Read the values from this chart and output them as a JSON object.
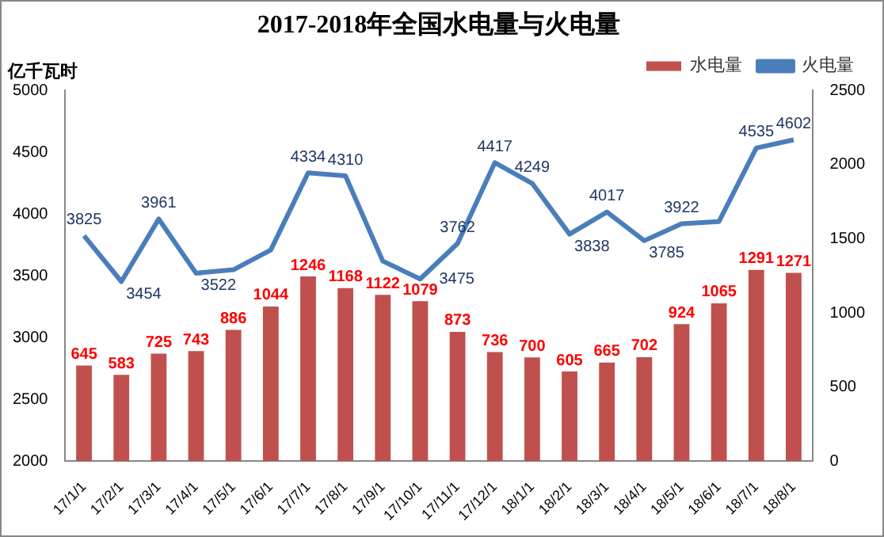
{
  "chart_data": {
    "type": "bar",
    "title": "2017-2018年全国水电量与火电量",
    "ylabel": "亿千瓦时",
    "categories": [
      "17/1/1",
      "17/2/1",
      "17/3/1",
      "17/4/1",
      "17/5/1",
      "17/6/1",
      "17/7/1",
      "17/8/1",
      "17/9/1",
      "17/10/1",
      "17/11/1",
      "17/12/1",
      "18/1/1",
      "18/2/1",
      "18/3/1",
      "18/4/1",
      "18/5/1",
      "18/6/1",
      "18/7/1",
      "18/8/1"
    ],
    "series": [
      {
        "name": "水电量",
        "axis": "y2",
        "color": "#c0504d",
        "values": [
          645,
          583,
          725,
          743,
          886,
          1044,
          1246,
          1168,
          1122,
          1079,
          873,
          736,
          700,
          605,
          665,
          702,
          924,
          1065,
          1291,
          1271
        ],
        "value_labels": [
          "645",
          "583",
          "725",
          "743",
          "886",
          "1044",
          "1246",
          "1168",
          "1122",
          "1079",
          "873",
          "736",
          "700",
          "605",
          "665",
          "702",
          "924",
          "1065",
          "1291",
          "1271"
        ]
      },
      {
        "name": "火电量",
        "type": "line",
        "color": "#4a7ebb",
        "values": [
          3825,
          3454,
          3961,
          3522,
          3550,
          3710,
          4334,
          4310,
          3620,
          3475,
          3762,
          4417,
          4249,
          3838,
          4017,
          3785,
          3922,
          3940,
          4535,
          4602
        ],
        "value_labels": [
          "3825",
          "3454",
          "3961",
          "3522",
          null,
          null,
          "4334",
          "4310",
          null,
          "3475",
          "3762",
          "4417",
          "4249",
          "3838",
          "4017",
          "3785",
          "3922",
          null,
          "4535",
          "4602"
        ]
      }
    ],
    "ylim": [
      2000,
      5000
    ],
    "yticks": [
      2000,
      2500,
      3000,
      3500,
      4000,
      4500,
      5000
    ],
    "y2lim": [
      0,
      2500
    ],
    "y2ticks": [
      0,
      500,
      1000,
      1500,
      2000,
      2500
    ],
    "grid": false,
    "legend": "top",
    "marker": "none",
    "line_style": "solid"
  }
}
